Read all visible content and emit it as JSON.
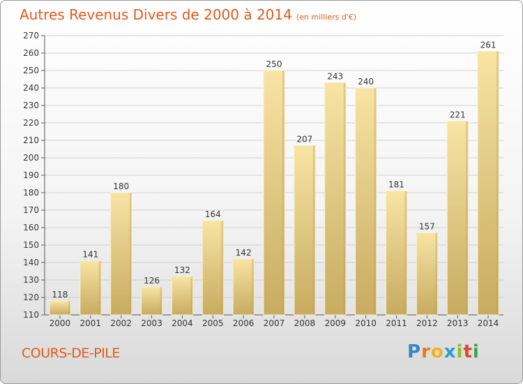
{
  "header": {
    "title": "Autres Revenus Divers de 2000 à 2014",
    "unit": "(en milliers d'€)"
  },
  "location": "COURS-DE-PILE",
  "logo": {
    "letters": [
      "P",
      "r",
      "o",
      "x",
      "i",
      "t",
      "i"
    ]
  },
  "colors": {
    "title": "#e05a1c",
    "bar_light": "#f7e2a2",
    "bar_dark": "#c8ac62",
    "grid": "#d0d0d0"
  },
  "chart_data": {
    "type": "bar",
    "categories": [
      "2000",
      "2001",
      "2002",
      "2003",
      "2004",
      "2005",
      "2006",
      "2007",
      "2008",
      "2009",
      "2010",
      "2011",
      "2012",
      "2013",
      "2014"
    ],
    "values": [
      118,
      141,
      180,
      126,
      132,
      164,
      142,
      250,
      207,
      243,
      240,
      181,
      157,
      221,
      261
    ],
    "title": "Autres Revenus Divers de 2000 à 2014",
    "xlabel": "",
    "ylabel": "",
    "ylim": [
      110,
      270
    ],
    "yticks": [
      110,
      120,
      130,
      140,
      150,
      160,
      170,
      180,
      190,
      200,
      210,
      220,
      230,
      240,
      250,
      260,
      270
    ],
    "grid": true,
    "data_labels": true
  }
}
